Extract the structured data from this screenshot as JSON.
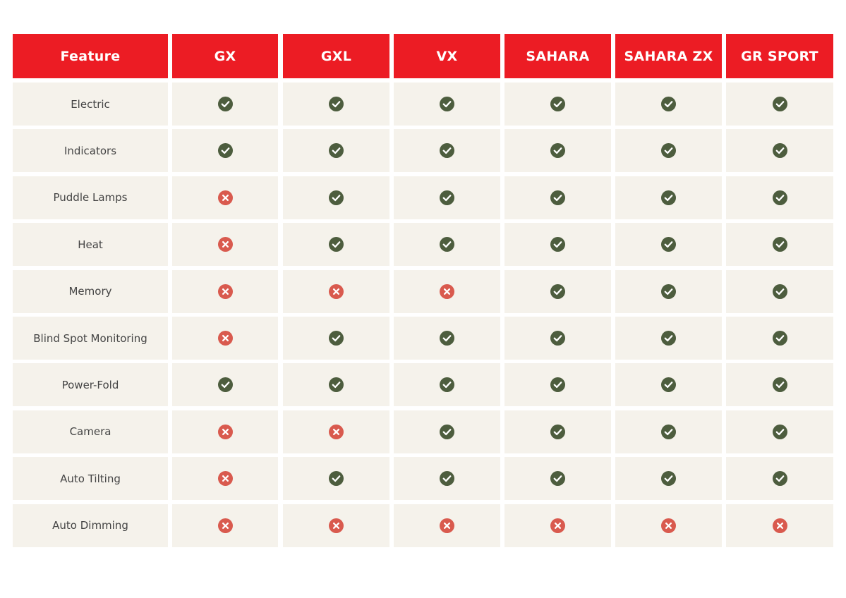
{
  "table": {
    "header": [
      "Feature",
      "GX",
      "GXL",
      "VX",
      "SAHARA",
      "SAHARA ZX",
      "GR SPORT"
    ],
    "rows": [
      {
        "feature": "Electric",
        "values": [
          true,
          true,
          true,
          true,
          true,
          true
        ]
      },
      {
        "feature": "Indicators",
        "values": [
          true,
          true,
          true,
          true,
          true,
          true
        ]
      },
      {
        "feature": "Puddle Lamps",
        "values": [
          false,
          true,
          true,
          true,
          true,
          true
        ]
      },
      {
        "feature": "Heat",
        "values": [
          false,
          true,
          true,
          true,
          true,
          true
        ]
      },
      {
        "feature": "Memory",
        "values": [
          false,
          false,
          false,
          true,
          true,
          true
        ]
      },
      {
        "feature": "Blind Spot Monitoring",
        "values": [
          false,
          true,
          true,
          true,
          true,
          true
        ]
      },
      {
        "feature": "Power-Fold",
        "values": [
          true,
          true,
          true,
          true,
          true,
          true
        ]
      },
      {
        "feature": "Camera",
        "values": [
          false,
          false,
          true,
          true,
          true,
          true
        ]
      },
      {
        "feature": "Auto Tilting",
        "values": [
          false,
          true,
          true,
          true,
          true,
          true
        ]
      },
      {
        "feature": "Auto Dimming",
        "values": [
          false,
          false,
          false,
          false,
          false,
          false
        ]
      }
    ]
  }
}
